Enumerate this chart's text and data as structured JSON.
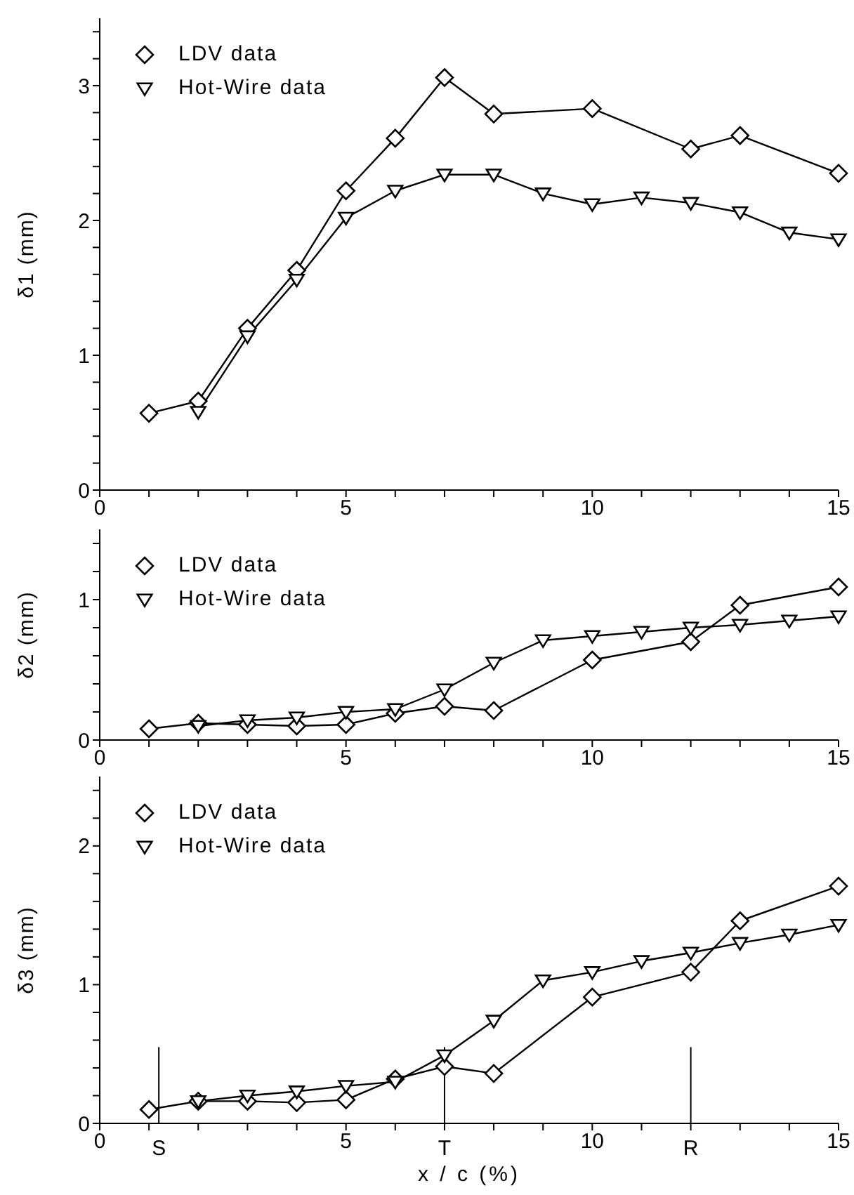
{
  "chart_data": [
    {
      "type": "line",
      "ylabel": "δ1 (mm)",
      "xlim": [
        0,
        15
      ],
      "ylim": [
        0,
        3.5
      ],
      "legend": "top left",
      "grid": false,
      "xticks": [
        0,
        {
          "value": 1,
          "label": null
        },
        {
          "value": 2,
          "label": null
        },
        {
          "value": 3,
          "label": null
        },
        {
          "value": 4,
          "label": null
        },
        5,
        {
          "value": 6,
          "label": null
        },
        {
          "value": 7,
          "label": null
        },
        {
          "value": 8,
          "label": null
        },
        {
          "value": 9,
          "label": null
        },
        10,
        {
          "value": 11,
          "label": null
        },
        {
          "value": 12,
          "label": null
        },
        {
          "value": 13,
          "label": null
        },
        {
          "value": 14,
          "label": null
        },
        15
      ],
      "yticks": [
        0,
        {
          "value": 0.2,
          "label": null
        },
        {
          "value": 0.4,
          "label": null
        },
        {
          "value": 0.6,
          "label": null
        },
        {
          "value": 0.8,
          "label": null
        },
        1,
        {
          "value": 1.2,
          "label": null
        },
        {
          "value": 1.4,
          "label": null
        },
        {
          "value": 1.6,
          "label": null
        },
        {
          "value": 1.8,
          "label": null
        },
        2,
        {
          "value": 2.2,
          "label": null
        },
        {
          "value": 2.4,
          "label": null
        },
        {
          "value": 2.6,
          "label": null
        },
        {
          "value": 2.8,
          "label": null
        },
        3,
        {
          "value": 3.2,
          "label": null
        },
        {
          "value": 3.4,
          "label": null
        }
      ],
      "series": [
        {
          "name": "LDV data",
          "color": "#000000",
          "marker": "diamond",
          "x": [
            1,
            2,
            3,
            4,
            5,
            6,
            7,
            8,
            10,
            12,
            13,
            15
          ],
          "values": [
            0.57,
            0.66,
            1.2,
            1.63,
            2.22,
            2.61,
            3.06,
            2.79,
            2.83,
            2.53,
            2.63,
            2.35
          ]
        },
        {
          "name": "Hot-Wire data",
          "color": "#000000",
          "marker": "triangle",
          "x": [
            2,
            3,
            4,
            5,
            6,
            7,
            8,
            9,
            10,
            11,
            12,
            13,
            14,
            15
          ],
          "values": [
            0.58,
            1.14,
            1.56,
            2.02,
            2.22,
            2.34,
            2.34,
            2.2,
            2.12,
            2.17,
            2.13,
            2.06,
            1.91,
            1.86
          ]
        }
      ]
    },
    {
      "type": "line",
      "ylabel": "δ2 (mm)",
      "xlim": [
        0,
        15
      ],
      "ylim": [
        0,
        1.5
      ],
      "legend": "top left",
      "grid": false,
      "xticks": [
        0,
        {
          "value": 1,
          "label": null
        },
        {
          "value": 2,
          "label": null
        },
        {
          "value": 3,
          "label": null
        },
        {
          "value": 4,
          "label": null
        },
        5,
        {
          "value": 6,
          "label": null
        },
        {
          "value": 7,
          "label": null
        },
        {
          "value": 8,
          "label": null
        },
        {
          "value": 9,
          "label": null
        },
        10,
        {
          "value": 11,
          "label": null
        },
        {
          "value": 12,
          "label": null
        },
        {
          "value": 13,
          "label": null
        },
        {
          "value": 14,
          "label": null
        },
        15
      ],
      "yticks": [
        0,
        {
          "value": 0.2,
          "label": null
        },
        {
          "value": 0.4,
          "label": null
        },
        {
          "value": 0.6,
          "label": null
        },
        {
          "value": 0.8,
          "label": null
        },
        1,
        {
          "value": 1.2,
          "label": null
        },
        {
          "value": 1.4,
          "label": null
        }
      ],
      "series": [
        {
          "name": "LDV data",
          "color": "#000000",
          "marker": "diamond",
          "x": [
            1,
            2,
            3,
            4,
            5,
            6,
            7,
            8,
            10,
            12,
            13,
            15
          ],
          "values": [
            0.08,
            0.12,
            0.11,
            0.1,
            0.11,
            0.19,
            0.24,
            0.21,
            0.57,
            0.7,
            0.96,
            1.09
          ]
        },
        {
          "name": "Hot-Wire data",
          "color": "#000000",
          "marker": "triangle",
          "x": [
            2,
            3,
            4,
            5,
            6,
            7,
            8,
            9,
            10,
            11,
            12,
            13,
            14,
            15
          ],
          "values": [
            0.1,
            0.14,
            0.16,
            0.2,
            0.22,
            0.36,
            0.55,
            0.71,
            0.74,
            0.77,
            0.8,
            0.82,
            0.85,
            0.88
          ]
        }
      ]
    },
    {
      "type": "line",
      "ylabel": "δ3 (mm)",
      "xlabel": "x / c (%)",
      "xlim": [
        0,
        15
      ],
      "ylim": [
        0,
        2.5
      ],
      "legend": "top left",
      "grid": false,
      "xticks": [
        0,
        {
          "value": 1,
          "label": null
        },
        {
          "value": 2,
          "label": null
        },
        {
          "value": 3,
          "label": null
        },
        {
          "value": 4,
          "label": null
        },
        5,
        {
          "value": 6,
          "label": null
        },
        {
          "value": 7,
          "label": null
        },
        {
          "value": 8,
          "label": null
        },
        {
          "value": 9,
          "label": null
        },
        10,
        {
          "value": 11,
          "label": null
        },
        {
          "value": 12,
          "label": null
        },
        {
          "value": 13,
          "label": null
        },
        {
          "value": 14,
          "label": null
        },
        15
      ],
      "yticks": [
        0,
        {
          "value": 0.2,
          "label": null
        },
        {
          "value": 0.4,
          "label": null
        },
        {
          "value": 0.6,
          "label": null
        },
        {
          "value": 0.8,
          "label": null
        },
        1,
        {
          "value": 1.2,
          "label": null
        },
        {
          "value": 1.4,
          "label": null
        },
        {
          "value": 1.6,
          "label": null
        },
        {
          "value": 1.8,
          "label": null
        },
        2,
        {
          "value": 2.2,
          "label": null
        },
        {
          "value": 2.4,
          "label": null
        }
      ],
      "ref_lines": [
        {
          "axis": "x",
          "value": 1.2,
          "label": "S"
        },
        {
          "axis": "x",
          "value": 7,
          "label": "T"
        },
        {
          "axis": "x",
          "value": 12,
          "label": "R"
        }
      ],
      "series": [
        {
          "name": "LDV data",
          "color": "#000000",
          "marker": "diamond",
          "x": [
            1,
            2,
            3,
            4,
            5,
            6,
            7,
            8,
            10,
            12,
            13,
            15
          ],
          "values": [
            0.1,
            0.16,
            0.16,
            0.15,
            0.17,
            0.32,
            0.41,
            0.36,
            0.91,
            1.09,
            1.46,
            1.71
          ]
        },
        {
          "name": "Hot-Wire data",
          "color": "#000000",
          "marker": "triangle",
          "x": [
            2,
            3,
            4,
            5,
            6,
            7,
            8,
            9,
            10,
            11,
            12,
            13,
            14,
            15
          ],
          "values": [
            0.16,
            0.2,
            0.23,
            0.27,
            0.3,
            0.49,
            0.74,
            1.03,
            1.09,
            1.17,
            1.23,
            1.3,
            1.36,
            1.43
          ]
        }
      ]
    }
  ]
}
